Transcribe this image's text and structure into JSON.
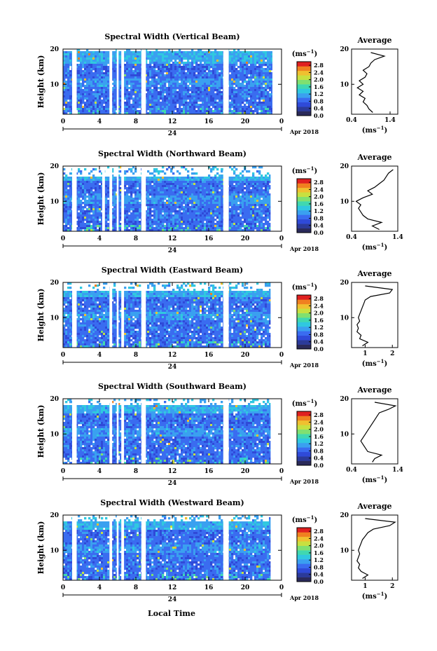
{
  "figure": {
    "xlabel": "Local Time",
    "date_label": "Apr 2018",
    "day_label": "24",
    "colorbar_unit": "(ms-1)",
    "average_title": "Average",
    "average_unit": "(ms-1)",
    "ylabel": "Height (km)"
  },
  "colors": {
    "colormap": [
      "#2a2a5a",
      "#2b3a9a",
      "#2f4ad8",
      "#3a6cf0",
      "#3aa0f0",
      "#30c8e0",
      "#40d8b0",
      "#80e070",
      "#c8e040",
      "#f0c030",
      "#f08020",
      "#e02020"
    ],
    "missing": "#ffffff"
  },
  "chart_data": [
    {
      "type": "heatmap",
      "title": "Spectral Width (Vertical Beam)",
      "x_ticks": [
        "0",
        "4",
        "8",
        "12",
        "16",
        "20",
        "0"
      ],
      "y_ticks": [
        "10",
        "20"
      ],
      "xlim": [
        0,
        24
      ],
      "ylim": [
        1.5,
        20
      ],
      "colorbar_ticks": [
        "0.0",
        "0.4",
        "0.8",
        "1.2",
        "1.6",
        "2.0",
        "2.4",
        "2.8"
      ],
      "colorbar_range": [
        0,
        3.0
      ],
      "data_gaps_hours": [
        [
          1.0,
          1.5
        ],
        [
          5.1,
          5.4
        ],
        [
          5.9,
          6.1
        ],
        [
          6.4,
          6.7
        ],
        [
          8.6,
          9.1
        ],
        [
          17.6,
          18.2
        ],
        [
          23.0,
          24.0
        ]
      ],
      "top_height_km": 19.5,
      "average_profile": {
        "xlim": [
          0.4,
          1.6
        ],
        "x_ticks": [
          "0.4",
          "1.4"
        ],
        "y_ticks": [
          "10",
          "20"
        ],
        "heights": [
          2,
          3,
          4,
          5,
          6,
          7,
          8,
          9,
          10,
          11,
          12,
          13,
          14,
          15,
          16,
          17,
          18,
          19
        ],
        "values": [
          0.95,
          0.85,
          0.8,
          0.7,
          0.75,
          0.6,
          0.7,
          0.55,
          0.7,
          0.6,
          0.75,
          0.8,
          0.7,
          0.85,
          0.9,
          1.0,
          1.25,
          0.9
        ]
      }
    },
    {
      "type": "heatmap",
      "title": "Spectral Width (Northward Beam)",
      "x_ticks": [
        "0",
        "4",
        "8",
        "12",
        "16",
        "20",
        "0"
      ],
      "y_ticks": [
        "10",
        "20"
      ],
      "xlim": [
        0,
        24
      ],
      "ylim": [
        1.5,
        20
      ],
      "colorbar_ticks": [
        "0.0",
        "0.4",
        "0.8",
        "1.2",
        "1.6",
        "2.0",
        "2.4",
        "2.8"
      ],
      "colorbar_range": [
        0,
        3.0
      ],
      "data_gaps_hours": [
        [
          1.0,
          1.5
        ],
        [
          4.3,
          4.6
        ],
        [
          5.1,
          5.4
        ],
        [
          5.9,
          6.1
        ],
        [
          6.4,
          6.7
        ],
        [
          8.6,
          9.1
        ],
        [
          17.6,
          18.2
        ],
        [
          22.8,
          24.0
        ]
      ],
      "top_height_km": 17.5,
      "average_profile": {
        "xlim": [
          0.4,
          1.4
        ],
        "x_ticks": [
          "0.4",
          "1.4"
        ],
        "y_ticks": [
          "10",
          "20"
        ],
        "heights": [
          2,
          3,
          4,
          5,
          6,
          7,
          8,
          9,
          10,
          11,
          12,
          13,
          14,
          15,
          16,
          17,
          18,
          19
        ],
        "values": [
          1.0,
          0.85,
          1.05,
          0.75,
          0.65,
          0.6,
          0.55,
          0.6,
          0.5,
          0.65,
          0.85,
          0.75,
          0.9,
          1.0,
          1.1,
          1.15,
          1.2,
          1.3
        ]
      }
    },
    {
      "type": "heatmap",
      "title": "Spectral Width (Eastward Beam)",
      "x_ticks": [
        "0",
        "4",
        "8",
        "12",
        "16",
        "20",
        "0"
      ],
      "y_ticks": [
        "10",
        "20"
      ],
      "xlim": [
        0,
        24
      ],
      "ylim": [
        1.5,
        20
      ],
      "colorbar_ticks": [
        "0.0",
        "0.4",
        "0.8",
        "1.2",
        "1.6",
        "2.0",
        "2.4",
        "2.8"
      ],
      "colorbar_range": [
        0,
        3.0
      ],
      "data_gaps_hours": [
        [
          1.0,
          1.5
        ],
        [
          5.1,
          5.4
        ],
        [
          5.9,
          6.1
        ],
        [
          6.4,
          6.7
        ],
        [
          8.6,
          9.1
        ],
        [
          17.6,
          18.2
        ],
        [
          22.8,
          24.0
        ]
      ],
      "top_height_km": 18.0,
      "average_profile": {
        "xlim": [
          0.5,
          2.2
        ],
        "x_ticks": [
          "1",
          "2"
        ],
        "y_ticks": [
          "10",
          "20"
        ],
        "heights": [
          2,
          3,
          4,
          5,
          6,
          7,
          8,
          9,
          10,
          11,
          12,
          13,
          14,
          15,
          16,
          17,
          18,
          19
        ],
        "values": [
          0.9,
          1.1,
          0.8,
          0.85,
          0.7,
          0.75,
          0.7,
          0.8,
          0.75,
          0.8,
          0.85,
          0.9,
          0.95,
          1.0,
          1.2,
          1.9,
          2.0,
          1.0
        ]
      }
    },
    {
      "type": "heatmap",
      "title": "Spectral Width (Southward Beam)",
      "x_ticks": [
        "0",
        "4",
        "8",
        "12",
        "16",
        "20",
        "0"
      ],
      "y_ticks": [
        "10",
        "20"
      ],
      "xlim": [
        0,
        24
      ],
      "ylim": [
        1.5,
        20
      ],
      "colorbar_ticks": [
        "0.0",
        "0.4",
        "0.8",
        "1.2",
        "1.6",
        "2.0",
        "2.4",
        "2.8"
      ],
      "colorbar_range": [
        0,
        3.0
      ],
      "data_gaps_hours": [
        [
          1.0,
          1.5
        ],
        [
          5.1,
          5.4
        ],
        [
          5.9,
          6.1
        ],
        [
          6.4,
          6.7
        ],
        [
          8.6,
          9.1
        ],
        [
          17.6,
          18.2
        ],
        [
          22.8,
          24.0
        ]
      ],
      "top_height_km": 18.5,
      "average_profile": {
        "xlim": [
          0.4,
          1.4
        ],
        "x_ticks": [
          "0.4",
          "1.4"
        ],
        "y_ticks": [
          "10",
          "20"
        ],
        "heights": [
          2,
          3,
          4,
          5,
          6,
          7,
          8,
          9,
          10,
          11,
          12,
          13,
          14,
          15,
          16,
          17,
          18,
          19
        ],
        "values": [
          0.85,
          0.9,
          1.05,
          0.75,
          0.7,
          0.65,
          0.6,
          0.65,
          0.7,
          0.75,
          0.8,
          0.85,
          0.9,
          0.95,
          1.0,
          1.2,
          1.35,
          0.9
        ]
      }
    },
    {
      "type": "heatmap",
      "title": "Spectral Width (Westward Beam)",
      "x_ticks": [
        "0",
        "4",
        "8",
        "12",
        "16",
        "20",
        "0"
      ],
      "y_ticks": [
        "10",
        "20"
      ],
      "xlim": [
        0,
        24
      ],
      "ylim": [
        1.5,
        20
      ],
      "colorbar_ticks": [
        "0.0",
        "0.4",
        "0.8",
        "1.2",
        "1.6",
        "2.0",
        "2.4",
        "2.8"
      ],
      "colorbar_range": [
        0,
        3.0
      ],
      "data_gaps_hours": [
        [
          1.0,
          1.5
        ],
        [
          5.1,
          5.4
        ],
        [
          5.9,
          6.1
        ],
        [
          6.4,
          6.7
        ],
        [
          8.6,
          9.1
        ],
        [
          17.6,
          18.2
        ],
        [
          22.8,
          24.0
        ]
      ],
      "top_height_km": 18.5,
      "average_profile": {
        "xlim": [
          0.5,
          2.2
        ],
        "x_ticks": [
          "1",
          "2"
        ],
        "y_ticks": [
          "10",
          "20"
        ],
        "heights": [
          2,
          3,
          4,
          5,
          6,
          7,
          8,
          9,
          10,
          11,
          12,
          13,
          14,
          15,
          16,
          17,
          18,
          19
        ],
        "values": [
          0.9,
          1.1,
          0.85,
          0.75,
          0.8,
          0.7,
          0.75,
          0.8,
          0.75,
          0.8,
          0.85,
          0.9,
          1.0,
          1.1,
          1.3,
          1.9,
          2.1,
          1.0
        ]
      }
    }
  ]
}
